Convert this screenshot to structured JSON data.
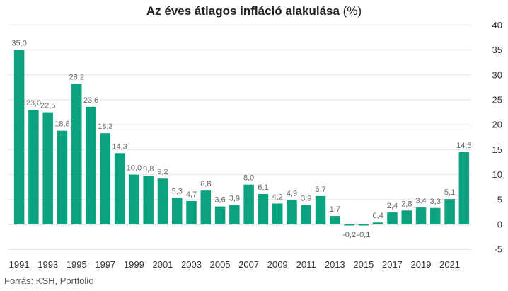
{
  "chart_data": {
    "type": "bar",
    "title_main": "Az éves átlagos infláció alakulása",
    "title_unit": "(%)",
    "source": "Forrás: KSH, Portfolio",
    "categories": [
      "1991",
      "1992",
      "1993",
      "1994",
      "1995",
      "1996",
      "1997",
      "1998",
      "1999",
      "2000",
      "2001",
      "2002",
      "2003",
      "2004",
      "2005",
      "2006",
      "2007",
      "2008",
      "2009",
      "2010",
      "2011",
      "2012",
      "2013",
      "2014",
      "2015",
      "2016",
      "2017",
      "2018",
      "2019",
      "2020",
      "2021",
      "2022"
    ],
    "x_tick_labels": [
      "1991",
      "1993",
      "1995",
      "1997",
      "1999",
      "2001",
      "2003",
      "2005",
      "2007",
      "2009",
      "2011",
      "2013",
      "2015",
      "2017",
      "2019",
      "2021"
    ],
    "values": [
      35.0,
      23.0,
      22.5,
      18.8,
      28.2,
      23.6,
      18.3,
      14.3,
      10.0,
      9.8,
      9.2,
      5.3,
      4.7,
      6.8,
      3.6,
      3.9,
      8.0,
      6.1,
      4.2,
      4.9,
      3.9,
      5.7,
      1.7,
      -0.2,
      -0.1,
      0.4,
      2.4,
      2.8,
      3.4,
      3.3,
      5.1,
      14.5
    ],
    "value_labels": [
      "35,0",
      "23,0",
      "22,5",
      "18,8",
      "28,2",
      "23,6",
      "18,3",
      "14,3",
      "10,0",
      "9,8",
      "9,2",
      "5,3",
      "4,7",
      "6,8",
      "3,6",
      "3,9",
      "8,0",
      "6,1",
      "4,2",
      "4,9",
      "3,9",
      "5,7",
      "1,7",
      "-0,2",
      "-0,1",
      "0,4",
      "2,4",
      "2,8",
      "3,4",
      "3,3",
      "5,1",
      "14,5"
    ],
    "y_ticks": [
      -5,
      0,
      5,
      10,
      15,
      20,
      25,
      30,
      35,
      40
    ],
    "ylim": [
      -5,
      40
    ],
    "y_axis_position": "right",
    "grid": true,
    "bar_color": "#0ba37f"
  }
}
